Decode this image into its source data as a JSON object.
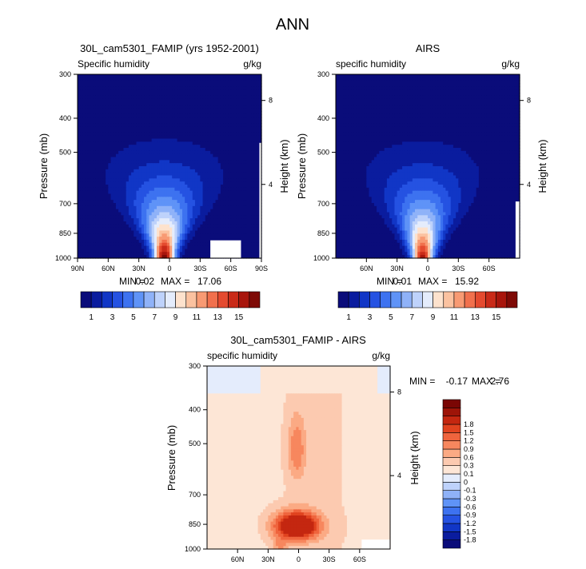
{
  "page_title": "ANN",
  "colors": {
    "frame": "#000000",
    "missing": "#ffffff",
    "abs_palette": [
      "#0a0c7a",
      "#0a1c9e",
      "#1136c6",
      "#2552e2",
      "#3d72f0",
      "#5f93f7",
      "#8fb2f8",
      "#bed2fb",
      "#e4ecfc",
      "#fde2cd",
      "#fbc2a0",
      "#f89a73",
      "#f1704d",
      "#e44a2f",
      "#c92a18",
      "#a8150c",
      "#7e0a06"
    ],
    "diff_palette": [
      "#0a0c7a",
      "#0a1c9e",
      "#1136c6",
      "#2552e2",
      "#3d72f0",
      "#5f93f7",
      "#8fb2f8",
      "#bed2fb",
      "#e4ecfc",
      "#fde6d6",
      "#fccab0",
      "#fbaa84",
      "#f7875e",
      "#ef643d",
      "#e0431f",
      "#c42710",
      "#9e1408",
      "#7a0604"
    ]
  },
  "panels": [
    {
      "id": "model",
      "title": "30L_cam5301_FAMIP (yrs 1952-2001)",
      "left_label": "Specific humidity",
      "right_label": "g/kg",
      "y_axis_title": "Pressure (mb)",
      "y2_axis_title": "Height (km)",
      "stats": {
        "min_label": "MIN =",
        "min_value": "0.02",
        "max_label": "MAX =",
        "max_value": "17.06"
      }
    },
    {
      "id": "obs",
      "title": "AIRS",
      "left_label": "specific humidity",
      "right_label": "g/kg",
      "y_axis_title": "Pressure (mb)",
      "y2_axis_title": "Height (km)",
      "stats": {
        "min_label": "MIN =",
        "min_value": "0.01",
        "max_label": "MAX =",
        "max_value": "15.92"
      }
    },
    {
      "id": "diff",
      "title": "30L_cam5301_FAMIP - AIRS",
      "left_label": "specific humidity",
      "right_label": "g/kg",
      "y_axis_title": "Pressure (mb)",
      "y2_axis_title": "Height (km)",
      "stats": {
        "min_label": "MIN =",
        "min_value": "-0.17",
        "max_label": "MAX =",
        "max_value": "2.76"
      }
    }
  ],
  "chart_data": [
    {
      "type": "heatmap",
      "title": "30L_cam5301_FAMIP (yrs 1952-2001)",
      "subtitle": "Specific humidity",
      "units": "g/kg",
      "xlabel": "",
      "ylabel": "Pressure (mb)",
      "y2label": "Height (km)",
      "x_ticks": [
        "90N",
        "60N",
        "30N",
        "0",
        "30S",
        "60S",
        "90S"
      ],
      "y_ticks": [
        300,
        400,
        500,
        700,
        850,
        1000
      ],
      "y2_ticks": [
        8,
        4
      ],
      "xlim": [
        90,
        -90
      ],
      "ylim": [
        1000,
        300
      ],
      "y_scale": "log",
      "color_levels": [
        1,
        2,
        3,
        4,
        5,
        6,
        7,
        8,
        9,
        10,
        11,
        12,
        13,
        14,
        15,
        16
      ],
      "colorbar_labels": [
        "1",
        "3",
        "5",
        "7",
        "9",
        "11",
        "13",
        "15"
      ],
      "min": 0.02,
      "max": 17.06,
      "field": {
        "peak_lat": 5,
        "peak_value": 17.06
      }
    },
    {
      "type": "heatmap",
      "title": "AIRS",
      "subtitle": "specific humidity",
      "units": "g/kg",
      "xlabel": "",
      "ylabel": "Pressure (mb)",
      "y2label": "Height (km)",
      "x_ticks": [
        "60N",
        "30N",
        "0",
        "30S",
        "60S"
      ],
      "y_ticks": [
        300,
        400,
        500,
        700,
        850,
        1000
      ],
      "y2_ticks": [
        8,
        4
      ],
      "xlim": [
        90,
        -90
      ],
      "ylim": [
        1000,
        300
      ],
      "y_scale": "log",
      "color_levels": [
        1,
        2,
        3,
        4,
        5,
        6,
        7,
        8,
        9,
        10,
        11,
        12,
        13,
        14,
        15,
        16
      ],
      "colorbar_labels": [
        "1",
        "3",
        "5",
        "7",
        "9",
        "11",
        "13",
        "15"
      ],
      "min": 0.01,
      "max": 15.92,
      "field": {
        "peak_lat": 5,
        "peak_value": 15.92
      }
    },
    {
      "type": "heatmap",
      "title": "30L_cam5301_FAMIP - AIRS",
      "subtitle": "specific humidity",
      "units": "g/kg",
      "xlabel": "",
      "ylabel": "Pressure (mb)",
      "y2label": "Height (km)",
      "x_ticks": [
        "60N",
        "30N",
        "0",
        "30S",
        "60S"
      ],
      "y_ticks": [
        300,
        400,
        500,
        700,
        850,
        1000
      ],
      "y2_ticks": [
        8,
        4
      ],
      "xlim": [
        90,
        -90
      ],
      "ylim": [
        1000,
        300
      ],
      "y_scale": "log",
      "color_levels": [
        -1.8,
        -1.5,
        -1.2,
        -0.9,
        -0.6,
        -0.3,
        -0.1,
        0,
        0.1,
        0.3,
        0.6,
        0.9,
        1.2,
        1.5,
        1.8
      ],
      "colorbar_labels": [
        "-1.8",
        "-1.5",
        "-1.2",
        "-0.9",
        "-0.6",
        "-0.3",
        "-0.1",
        "0",
        "0.1",
        "0.3",
        "0.6",
        "0.9",
        "1.2",
        "1.5",
        "1.8"
      ],
      "min": -0.17,
      "max": 2.76
    }
  ]
}
